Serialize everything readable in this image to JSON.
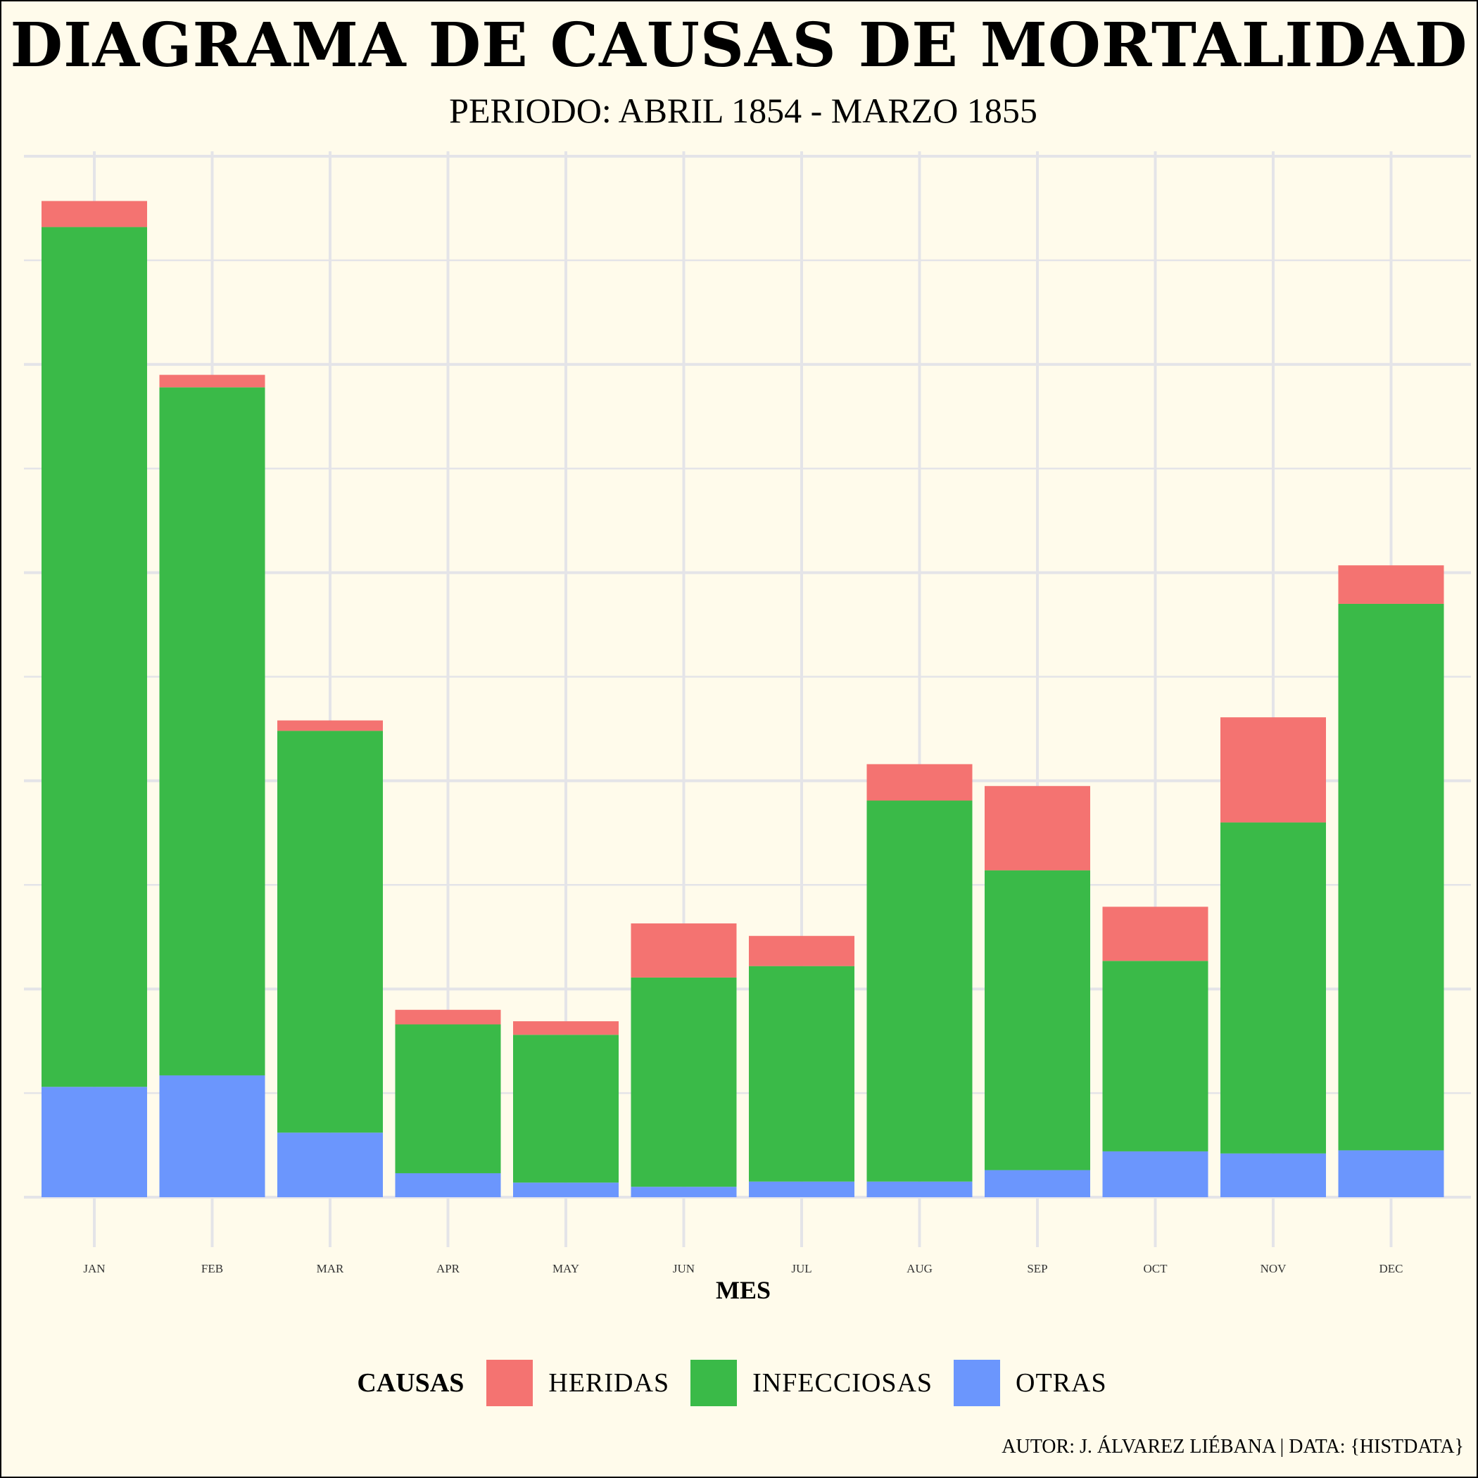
{
  "title": "DIAGRAMA DE CAUSAS DE MORTALIDAD",
  "subtitle": "PERIODO: ABRIL 1854 - MARZO 1855",
  "caption": "AUTOR: J. ÁLVAREZ LIÉBANA | DATA: {HISTDATA}",
  "legend": {
    "title": "CAUSAS",
    "items": [
      {
        "label": "HERIDAS",
        "color": "#f47371"
      },
      {
        "label": "INFECCIOSAS",
        "color": "#3aba48"
      },
      {
        "label": "OTRAS",
        "color": "#6b96fd"
      }
    ]
  },
  "chart_data": {
    "type": "bar",
    "stacked": true,
    "title": "DIAGRAMA DE CAUSAS DE MORTALIDAD",
    "subtitle": "PERIODO: ABRIL 1854 - MARZO 1855",
    "xlabel": "MES",
    "ylabel": "",
    "ylim": [
      0,
      1000
    ],
    "grid": true,
    "legend_position": "bottom",
    "categories": [
      "JAN",
      "FEB",
      "MAR",
      "APR",
      "MAY",
      "JUN",
      "JUL",
      "AUG",
      "SEP",
      "OCT",
      "NOV",
      "DEC"
    ],
    "series": [
      {
        "name": "OTRAS",
        "color": "#6b96fd",
        "values": [
          106,
          117,
          62,
          23,
          14,
          10,
          15,
          15,
          26,
          44,
          42,
          45
        ]
      },
      {
        "name": "INFECCIOSAS",
        "color": "#3aba48",
        "values": [
          826,
          661,
          386,
          143,
          142,
          201,
          207,
          366,
          288,
          183,
          318,
          525
        ]
      },
      {
        "name": "HERIDAS",
        "color": "#f47371",
        "values": [
          25,
          12,
          10,
          14,
          13,
          52,
          29,
          35,
          81,
          52,
          101,
          37
        ]
      }
    ]
  }
}
